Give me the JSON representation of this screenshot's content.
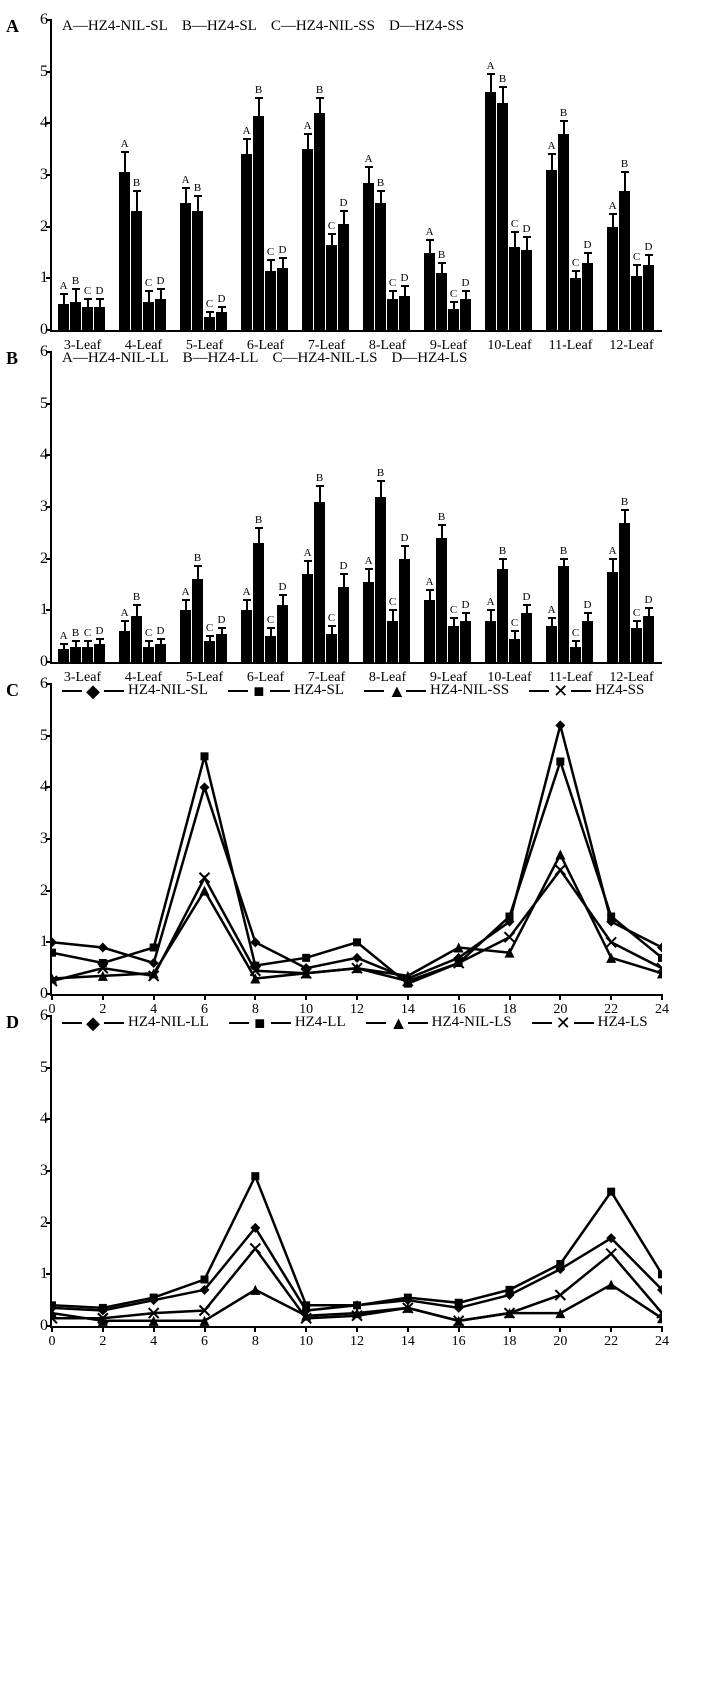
{
  "panelA": {
    "label": "A",
    "ymax": 6,
    "ytick_step": 1,
    "type": "bar",
    "legend": {
      "A": "HZ4-NIL-SL",
      "B": "HZ4-SL",
      "C": "HZ4-NIL-SS",
      "D": "HZ4-SS"
    },
    "categories": [
      "3-Leaf",
      "4-Leaf",
      "5-Leaf",
      "6-Leaf",
      "7-Leaf",
      "8-Leaf",
      "9-Leaf",
      "10-Leaf",
      "11-Leaf",
      "12-Leaf"
    ],
    "series_labels": [
      "A",
      "B",
      "C",
      "D"
    ],
    "bar_color": "#000000",
    "values": [
      [
        0.5,
        0.55,
        0.45,
        0.45
      ],
      [
        3.05,
        2.3,
        0.55,
        0.6
      ],
      [
        2.45,
        2.3,
        0.25,
        0.35
      ],
      [
        3.4,
        4.15,
        1.15,
        1.2
      ],
      [
        3.5,
        4.2,
        1.65,
        2.05
      ],
      [
        2.85,
        2.45,
        0.6,
        0.65
      ],
      [
        1.5,
        1.1,
        0.4,
        0.6
      ],
      [
        4.6,
        4.4,
        1.6,
        1.55
      ],
      [
        3.1,
        3.8,
        1.0,
        1.3
      ],
      [
        2.0,
        2.7,
        1.05,
        1.25
      ]
    ],
    "errors": [
      [
        0.2,
        0.25,
        0.15,
        0.15
      ],
      [
        0.4,
        0.4,
        0.2,
        0.2
      ],
      [
        0.3,
        0.3,
        0.1,
        0.1
      ],
      [
        0.3,
        0.35,
        0.2,
        0.2
      ],
      [
        0.3,
        0.3,
        0.2,
        0.25
      ],
      [
        0.3,
        0.25,
        0.15,
        0.2
      ],
      [
        0.25,
        0.2,
        0.15,
        0.15
      ],
      [
        0.35,
        0.3,
        0.3,
        0.25
      ],
      [
        0.3,
        0.25,
        0.15,
        0.2
      ],
      [
        0.25,
        0.35,
        0.2,
        0.2
      ]
    ]
  },
  "panelB": {
    "label": "B",
    "ymax": 6,
    "ytick_step": 1,
    "type": "bar",
    "legend": {
      "A": "HZ4-NIL-LL",
      "B": "HZ4-LL",
      "C": "HZ4-NIL-LS",
      "D": "HZ4-LS"
    },
    "categories": [
      "3-Leaf",
      "4-Leaf",
      "5-Leaf",
      "6-Leaf",
      "7-Leaf",
      "8-Leaf",
      "9-Leaf",
      "10-Leaf",
      "11-Leaf",
      "12-Leaf"
    ],
    "series_labels": [
      "A",
      "B",
      "C",
      "D"
    ],
    "bar_color": "#000000",
    "values": [
      [
        0.25,
        0.3,
        0.3,
        0.35
      ],
      [
        0.6,
        0.9,
        0.3,
        0.35
      ],
      [
        1.0,
        1.6,
        0.4,
        0.55
      ],
      [
        1.0,
        2.3,
        0.5,
        1.1
      ],
      [
        1.7,
        3.1,
        0.55,
        1.45
      ],
      [
        1.55,
        3.2,
        0.8,
        2.0
      ],
      [
        1.2,
        2.4,
        0.7,
        0.8
      ],
      [
        0.8,
        1.8,
        0.45,
        0.95
      ],
      [
        0.7,
        1.85,
        0.3,
        0.8
      ],
      [
        1.75,
        2.7,
        0.65,
        0.9
      ]
    ],
    "errors": [
      [
        0.1,
        0.1,
        0.1,
        0.1
      ],
      [
        0.2,
        0.2,
        0.1,
        0.1
      ],
      [
        0.2,
        0.25,
        0.1,
        0.1
      ],
      [
        0.2,
        0.3,
        0.15,
        0.2
      ],
      [
        0.25,
        0.3,
        0.15,
        0.25
      ],
      [
        0.25,
        0.3,
        0.2,
        0.25
      ],
      [
        0.2,
        0.25,
        0.15,
        0.15
      ],
      [
        0.2,
        0.2,
        0.15,
        0.15
      ],
      [
        0.15,
        0.15,
        0.1,
        0.15
      ],
      [
        0.25,
        0.25,
        0.15,
        0.15
      ]
    ]
  },
  "panelC": {
    "label": "C",
    "ymax": 6,
    "ytick_step": 1,
    "type": "line",
    "legend": [
      "HZ4-NIL-SL",
      "HZ4-SL",
      "HZ4-NIL-SS",
      "HZ4-SS"
    ],
    "markers": [
      "◆",
      "■",
      "▲",
      "✕"
    ],
    "xvals": [
      0,
      2,
      4,
      6,
      8,
      10,
      12,
      14,
      16,
      18,
      20,
      22,
      24
    ],
    "line_color": "#000000",
    "line_width": 2.5,
    "series": [
      [
        1.0,
        0.9,
        0.6,
        4.0,
        1.0,
        0.5,
        0.7,
        0.3,
        0.7,
        1.4,
        5.2,
        1.4,
        0.9
      ],
      [
        0.8,
        0.6,
        0.9,
        4.6,
        0.55,
        0.7,
        1.0,
        0.2,
        0.6,
        1.5,
        4.5,
        1.5,
        0.7
      ],
      [
        0.3,
        0.35,
        0.4,
        2.0,
        0.3,
        0.4,
        0.5,
        0.35,
        0.9,
        0.8,
        2.7,
        0.7,
        0.4
      ],
      [
        0.25,
        0.5,
        0.35,
        2.25,
        0.45,
        0.4,
        0.5,
        0.25,
        0.6,
        1.1,
        2.4,
        1.0,
        0.5
      ]
    ]
  },
  "panelD": {
    "label": "D",
    "ymax": 6,
    "ytick_step": 1,
    "type": "line",
    "legend": [
      "HZ4-NIL-LL",
      "HZ4-LL",
      "HZ4-NIL-LS",
      "HZ4-LS"
    ],
    "markers": [
      "◆",
      "■",
      "▲",
      "✕"
    ],
    "xvals": [
      0,
      2,
      4,
      6,
      8,
      10,
      12,
      14,
      16,
      18,
      20,
      22,
      24
    ],
    "line_color": "#000000",
    "line_width": 2.5,
    "series": [
      [
        0.35,
        0.3,
        0.5,
        0.7,
        1.9,
        0.3,
        0.4,
        0.5,
        0.35,
        0.6,
        1.1,
        1.7,
        0.7
      ],
      [
        0.4,
        0.35,
        0.55,
        0.9,
        2.9,
        0.4,
        0.4,
        0.55,
        0.45,
        0.7,
        1.2,
        2.6,
        1.0
      ],
      [
        0.25,
        0.1,
        0.1,
        0.1,
        0.7,
        0.2,
        0.25,
        0.35,
        0.1,
        0.25,
        0.25,
        0.8,
        0.15
      ],
      [
        0.15,
        0.15,
        0.25,
        0.3,
        1.5,
        0.15,
        0.2,
        0.35,
        0.1,
        0.25,
        0.6,
        1.4,
        0.25
      ]
    ]
  }
}
